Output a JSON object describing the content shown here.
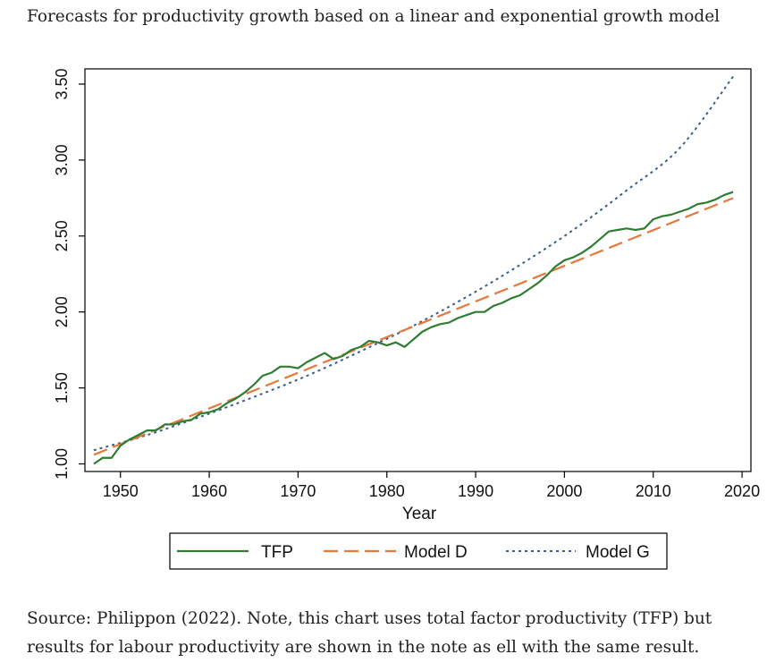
{
  "page": {
    "title": "Forecasts for productivity growth based on a linear and exponential growth model",
    "caption_line1": "Source: Philippon (2022). Note, this chart uses total factor productivity (TFP) but",
    "caption_line2": "results for labour productivity are shown in the note as ell with the same result."
  },
  "chart_data": {
    "type": "line",
    "title": "Forecasts for productivity growth based on a linear and exponential growth model",
    "xlabel": "Year",
    "ylabel": "",
    "xlim": [
      1946,
      2021
    ],
    "ylim": [
      0.95,
      3.6
    ],
    "xticks": [
      1950,
      1960,
      1970,
      1980,
      1990,
      2000,
      2010,
      2020
    ],
    "yticks": [
      1.0,
      1.5,
      2.0,
      2.5,
      3.0,
      3.5
    ],
    "ytick_labels": [
      "1.00",
      "1.50",
      "2.00",
      "2.50",
      "3.00",
      "3.50"
    ],
    "grid": false,
    "legend_position": "bottom",
    "colors": {
      "tfp": "#2e7d32",
      "model_d": "#e8773a",
      "model_g": "#3b5f8a"
    },
    "series": [
      {
        "name": "TFP",
        "style": "solid",
        "x": [
          1947,
          1948,
          1949,
          1950,
          1951,
          1952,
          1953,
          1954,
          1955,
          1956,
          1957,
          1958,
          1959,
          1960,
          1961,
          1962,
          1963,
          1964,
          1965,
          1966,
          1967,
          1968,
          1969,
          1970,
          1971,
          1972,
          1973,
          1974,
          1975,
          1976,
          1977,
          1978,
          1979,
          1980,
          1981,
          1982,
          1983,
          1984,
          1985,
          1986,
          1987,
          1988,
          1989,
          1990,
          1991,
          1992,
          1993,
          1994,
          1995,
          1996,
          1997,
          1998,
          1999,
          2000,
          2001,
          2002,
          2003,
          2004,
          2005,
          2006,
          2007,
          2008,
          2009,
          2010,
          2011,
          2012,
          2013,
          2014,
          2015,
          2016,
          2017,
          2018,
          2019
        ],
        "values": [
          1.0,
          1.04,
          1.04,
          1.12,
          1.16,
          1.19,
          1.22,
          1.22,
          1.26,
          1.26,
          1.28,
          1.29,
          1.33,
          1.34,
          1.36,
          1.4,
          1.43,
          1.47,
          1.52,
          1.58,
          1.6,
          1.64,
          1.64,
          1.63,
          1.67,
          1.7,
          1.73,
          1.69,
          1.71,
          1.75,
          1.77,
          1.81,
          1.8,
          1.78,
          1.8,
          1.77,
          1.82,
          1.87,
          1.9,
          1.92,
          1.93,
          1.96,
          1.98,
          2.0,
          2.0,
          2.04,
          2.06,
          2.09,
          2.11,
          2.15,
          2.19,
          2.24,
          2.3,
          2.34,
          2.36,
          2.39,
          2.43,
          2.48,
          2.53,
          2.54,
          2.55,
          2.54,
          2.55,
          2.61,
          2.63,
          2.64,
          2.66,
          2.68,
          2.71,
          2.72,
          2.74,
          2.77,
          2.79
        ]
      },
      {
        "name": "Model D",
        "style": "dashed",
        "x": [
          1947,
          2019
        ],
        "values": [
          1.06,
          2.75
        ]
      },
      {
        "name": "Model G",
        "style": "dotted",
        "x": [
          1947,
          1953,
          1959,
          1965,
          1971,
          1977,
          1983,
          1989,
          1995,
          2001,
          2007,
          2013,
          2019
        ],
        "values": [
          1.09,
          1.19,
          1.31,
          1.44,
          1.58,
          1.74,
          1.91,
          2.1,
          2.31,
          2.54,
          2.8,
          3.08,
          3.55
        ]
      }
    ]
  }
}
